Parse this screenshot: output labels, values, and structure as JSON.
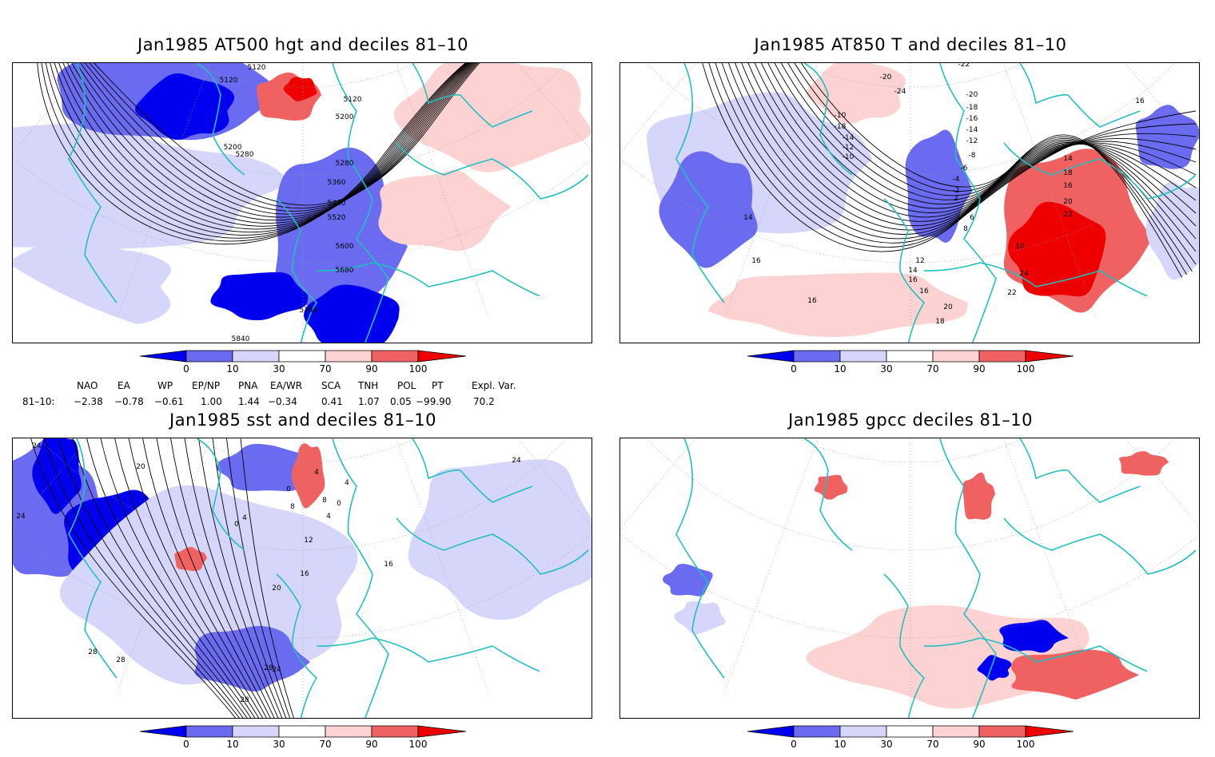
{
  "panels": [
    {
      "title": "Jan1985 AT500 hgt and deciles 81–10",
      "contour_labels": [
        "5120",
        "5120",
        "5120",
        "5200",
        "5200",
        "5280",
        "5280",
        "5360",
        "5440",
        "5520",
        "5600",
        "5680",
        "5760",
        "5840"
      ]
    },
    {
      "title": "Jan1985 AT850 T and deciles 81–10",
      "contour_labels": [
        "-22",
        "-20",
        "-24",
        "-20",
        "-18",
        "-16",
        "-14",
        "-12",
        "-10",
        "-18",
        "-14",
        "-12",
        "-10",
        "-8",
        "-6",
        "-4",
        "-2",
        "2",
        "4",
        "6",
        "8",
        "10",
        "12",
        "14",
        "16",
        "16",
        "14",
        "16",
        "16",
        "14",
        "18",
        "16",
        "20",
        "22",
        "24",
        "22",
        "20",
        "18",
        "16"
      ]
    },
    {
      "title": "Jan1985 sst and deciles 81–10",
      "contour_labels": [
        "24",
        "20",
        "24",
        "28",
        "28",
        "24",
        "0",
        "4",
        "8",
        "0",
        "4",
        "4",
        "8",
        "12",
        "16",
        "16",
        "20",
        "24",
        "28",
        "28",
        "4",
        "0"
      ]
    },
    {
      "title": "Jan1985 gpcc deciles 81–10",
      "contour_labels": []
    }
  ],
  "colorbar": {
    "ticks": [
      "0",
      "10",
      "30",
      "70",
      "90",
      "100"
    ],
    "colors": [
      "#0000ee",
      "#6b6bf2",
      "#d6d6fb",
      "#ffffff",
      "#fcd2d2",
      "#f06262",
      "#ee0000"
    ]
  },
  "indices": {
    "headers": [
      "NAO",
      "EA",
      "WP",
      "EP/NP",
      "PNA",
      "EA/WR",
      "SCA",
      "TNH",
      "POL",
      "PT",
      "Expl. Var."
    ],
    "row_label": "81–10:",
    "values": [
      "−2.38",
      "−0.78",
      "−0.61",
      "1.00",
      "1.44",
      "−0.34",
      "0.41",
      "1.07",
      "0.05",
      "−99.90",
      "70.2"
    ]
  },
  "colors": {
    "coast": "#20c0c0",
    "contour": "#000000",
    "grid": "#9a9a9a"
  }
}
